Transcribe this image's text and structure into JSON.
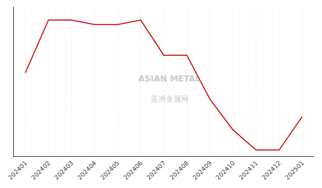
{
  "chart_data": {
    "type": "line",
    "categories": [
      "202401",
      "202402",
      "202403",
      "202404",
      "202405",
      "202406",
      "202407",
      "202408",
      "202409",
      "202410",
      "202411",
      "202412",
      "202501"
    ],
    "values": [
      9,
      15,
      15,
      14.5,
      14.5,
      15,
      11,
      11,
      6,
      2.5,
      0.2,
      0.2,
      4.0
    ],
    "color": "#cc0000",
    "ylim": [
      -0.5,
      16.5
    ],
    "yticks": [],
    "grid": true,
    "tick_labels": "x",
    "annotations": [
      "ASIAN METAL",
      "亚洲金属网"
    ]
  }
}
